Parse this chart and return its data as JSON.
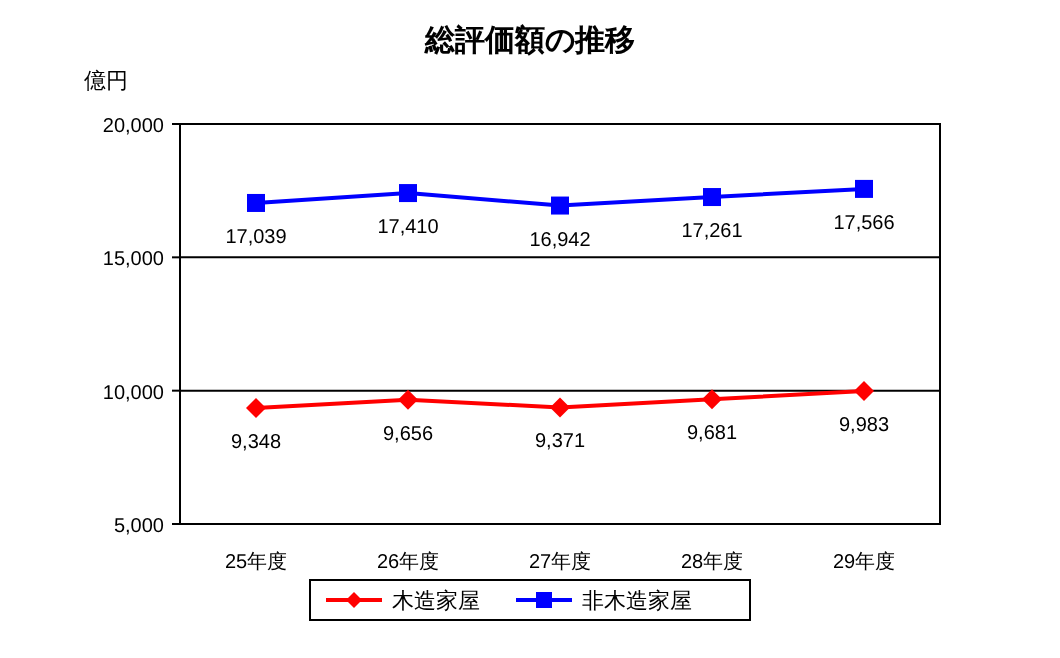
{
  "chart_data": {
    "type": "line",
    "title": "総評価額の推移",
    "ylabel": "億円",
    "categories": [
      "25年度",
      "26年度",
      "27年度",
      "28年度",
      "29年度"
    ],
    "series": [
      {
        "name": "木造家屋",
        "color": "#ff0000",
        "marker": "diamond",
        "values": [
          9348,
          9656,
          9371,
          9681,
          9983
        ],
        "value_labels": [
          "9,348",
          "9,656",
          "9,371",
          "9,681",
          "9,983"
        ]
      },
      {
        "name": "非木造家屋",
        "color": "#0000ff",
        "marker": "square",
        "values": [
          17039,
          17410,
          16942,
          17261,
          17566
        ],
        "value_labels": [
          "17,039",
          "17,410",
          "16,942",
          "17,261",
          "17,566"
        ]
      }
    ],
    "ylim": [
      5000,
      20000
    ],
    "yticks": [
      {
        "value": 5000,
        "label": "5,000"
      },
      {
        "value": 10000,
        "label": "10,000"
      },
      {
        "value": 15000,
        "label": "15,000"
      },
      {
        "value": 20000,
        "label": "20,000"
      }
    ],
    "grid": "y",
    "legend": "bottom"
  }
}
